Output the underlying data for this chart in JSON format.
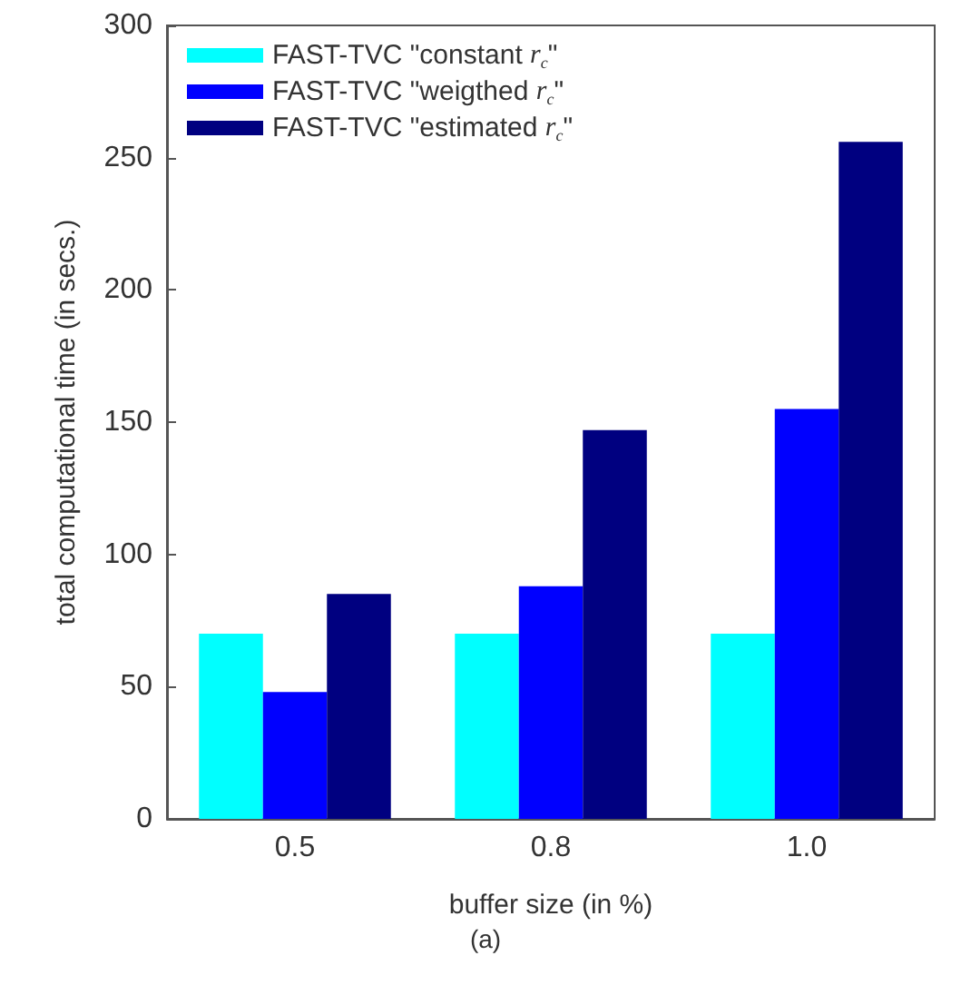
{
  "chart_data": {
    "type": "bar",
    "xlabel": "buffer size (in %)",
    "ylabel": "total computational time (in secs.)",
    "categories": [
      "0.5",
      "0.8",
      "1.0"
    ],
    "series": [
      {
        "name": "FAST-TVC \"constant r$_{c}$\"",
        "color": "#00ffff",
        "values": [
          70,
          70,
          70
        ]
      },
      {
        "name": "FAST-TVC \"weigthed r$_{c}$\"",
        "color": "#0000ff",
        "values": [
          48,
          88,
          155
        ]
      },
      {
        "name": "FAST-TVC \"estimated r$_{c}$\"",
        "color": "#000080",
        "values": [
          85,
          147,
          256
        ]
      }
    ],
    "ylim": [
      0,
      300
    ],
    "yticks": [
      0,
      50,
      100,
      150,
      200,
      250,
      300
    ],
    "grid": false,
    "legend": "top left",
    "annotations": [
      "(a)"
    ]
  }
}
